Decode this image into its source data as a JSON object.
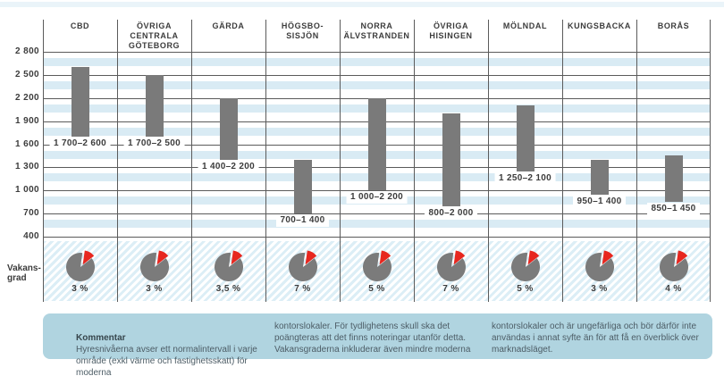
{
  "colors": {
    "text": "#3c3c3c",
    "gridline": "#5b5b5b",
    "stripe_blue": "#d9ebf4",
    "bar_gray": "#7a7a7a",
    "slice_red": "#e7271f",
    "pie_gray": "#7b7b7b",
    "comment_bg": "#b0d4e0",
    "comment_text": "#4d5d66"
  },
  "chart_data": {
    "type": "bar",
    "subtype": "range-bar-with-vacancy-pies",
    "ylim": [
      400,
      2800
    ],
    "grid": "on",
    "yticks": [
      {
        "value": 2800,
        "label": "2 800"
      },
      {
        "value": 2500,
        "label": "2 500"
      },
      {
        "value": 2200,
        "label": "2 200"
      },
      {
        "value": 1900,
        "label": "1 900"
      },
      {
        "value": 1600,
        "label": "1 600"
      },
      {
        "value": 1300,
        "label": "1 300"
      },
      {
        "value": 1000,
        "label": "1 000"
      },
      {
        "value": 700,
        "label": "700"
      },
      {
        "value": 400,
        "label": "400"
      }
    ],
    "row_label": "Vakans-\ngrad",
    "categories": [
      {
        "header": "CBD",
        "rent_min": 1700,
        "rent_max": 2600,
        "range_label": "1 700–2 600",
        "vacancy_pct": 3,
        "vacancy_label": "3 %"
      },
      {
        "header": "ÖVRIGA\nCENTRALA\nGÖTEBORG",
        "rent_min": 1700,
        "rent_max": 2500,
        "range_label": "1 700–2 500",
        "vacancy_pct": 3,
        "vacancy_label": "3 %"
      },
      {
        "header": "GÄRDA",
        "rent_min": 1400,
        "rent_max": 2200,
        "range_label": "1 400–2 200",
        "vacancy_pct": 3.5,
        "vacancy_label": "3,5 %"
      },
      {
        "header": "HÖGSBO-\nSISJÖN",
        "rent_min": 700,
        "rent_max": 1400,
        "range_label": "700–1 400",
        "vacancy_pct": 7,
        "vacancy_label": "7 %"
      },
      {
        "header": "NORRA\nÄLVSTRANDEN",
        "rent_min": 1000,
        "rent_max": 2200,
        "range_label": "1 000–2 200",
        "vacancy_pct": 5,
        "vacancy_label": "5 %"
      },
      {
        "header": "ÖVRIGA\nHISINGEN",
        "rent_min": 800,
        "rent_max": 2000,
        "range_label": "800–2 000",
        "vacancy_pct": 7,
        "vacancy_label": "7 %"
      },
      {
        "header": "MÖLNDAL",
        "rent_min": 1250,
        "rent_max": 2100,
        "range_label": "1 250–2 100",
        "vacancy_pct": 5,
        "vacancy_label": "5 %"
      },
      {
        "header": "KUNGSBACKA",
        "rent_min": 950,
        "rent_max": 1400,
        "range_label": "950–1 400",
        "vacancy_pct": 3,
        "vacancy_label": "3 %"
      },
      {
        "header": "BORÅS",
        "rent_min": 850,
        "rent_max": 1450,
        "range_label": "850–1 450",
        "vacancy_pct": 4,
        "vacancy_label": "4 %"
      }
    ]
  },
  "comment": {
    "title": "Kommentar",
    "col1": "Hyresnivåerna avser ett normalintervall i varje\nområde (exkl värme och fastighetsskatt) för moderna",
    "col2": "kontorslokaler. För tydlighetens skull ska det\npoängteras att det finns noteringar utanför detta.\nVakansgraderna inkluderar även mindre moderna",
    "col3": "kontorslokaler och är ungefärliga och bör därför inte\nanvändas i annat syfte än för att få en överblick över\nmarknadsläget."
  }
}
